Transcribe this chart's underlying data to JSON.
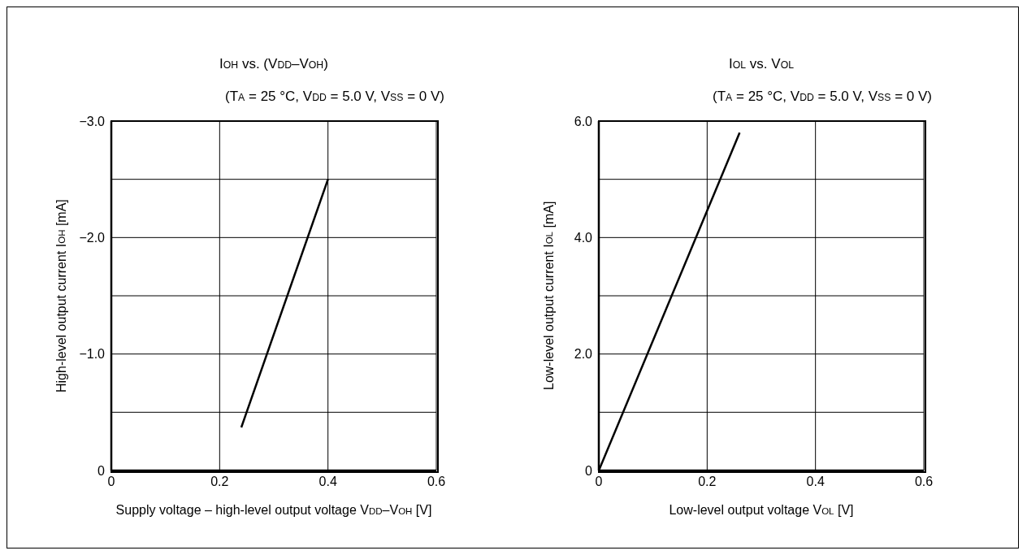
{
  "chart_data": [
    {
      "type": "line",
      "title": "I$_{OH}$ vs. (V$_{DD}$–V$_{OH}$)",
      "subtitle": "(T$_{A}$ = 25 °C, V$_{DD}$ = 5.0 V, V$_{SS}$ = 0 V)",
      "xlabel": "Supply voltage – high-level output voltage V$_{DD}$–V$_{OH}$ [V]",
      "ylabel": "High-level output current I$_{OH}$ [mA]",
      "x": [
        0.24,
        0.4
      ],
      "series": [
        {
          "color": "#000000",
          "values": [
            -0.37,
            -2.5
          ]
        }
      ],
      "xlim": [
        0,
        0.6
      ],
      "xticks": [
        0,
        0.2,
        0.4,
        0.6
      ],
      "ylim": [
        0,
        -3
      ],
      "yticks": [
        0,
        {
          "value": -0.5,
          "label": null
        },
        {
          "value": -1,
          "label": "−1.0"
        },
        {
          "value": -1.5,
          "label": null
        },
        {
          "value": -2,
          "label": "−2.0"
        },
        {
          "value": -2.5,
          "label": null
        },
        {
          "value": -3,
          "label": "−3.0"
        }
      ],
      "grid": true
    },
    {
      "type": "line",
      "title": "I$_{OL}$ vs. V$_{OL}$",
      "subtitle": "(T$_{A}$ = 25 °C, V$_{DD}$ = 5.0 V, V$_{SS}$ = 0 V)",
      "xlabel": "Low-level output voltage V$_{OL}$ [V]",
      "ylabel": "Low-level output current I$_{OL}$ [mA]",
      "x": [
        0,
        0.26
      ],
      "series": [
        {
          "color": "#000000",
          "values": [
            0,
            5.8
          ]
        }
      ],
      "xlim": [
        0,
        0.6
      ],
      "xticks": [
        0,
        0.2,
        0.4,
        0.6
      ],
      "ylim": [
        0,
        6
      ],
      "yticks": [
        0,
        {
          "value": 1,
          "label": null
        },
        {
          "value": 2,
          "label": "2.0"
        },
        {
          "value": 3,
          "label": null
        },
        {
          "value": 4,
          "label": "4.0"
        },
        {
          "value": 5,
          "label": null
        },
        {
          "value": 6,
          "label": "6.0"
        }
      ],
      "grid": true
    }
  ]
}
